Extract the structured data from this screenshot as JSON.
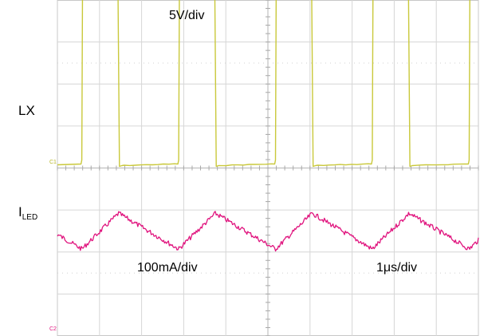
{
  "chart_data": {
    "type": "line",
    "title": "",
    "instrument": "oscilloscope",
    "grid": {
      "divisions_x": 10,
      "divisions_y": 8,
      "minor_ticks_on_center_axes": true,
      "grid_on": true
    },
    "time_scale": "1µs/div",
    "channels": [
      {
        "name": "LX",
        "name_main": "LX",
        "name_sub": "",
        "scale": "5V/div",
        "color": "#c9c83a",
        "marker": "C1",
        "waveform": "square",
        "unit": "V",
        "volts_per_div": 5,
        "low_level_V": 0,
        "high_level_V": 23,
        "period_us": 2.3,
        "duty_cycle": 0.38,
        "first_rising_edge_us": 0.58
      },
      {
        "name": "ILED",
        "name_main": "I",
        "name_sub": "LED",
        "scale": "100mA/div",
        "color": "#e0147e",
        "marker": "C2",
        "waveform": "triangle",
        "unit": "mA",
        "amps_per_div_mA": 100,
        "ripple_pp_mA": 100,
        "period_us": 2.3
      }
    ],
    "annotations": [
      "5V/div",
      "100mA/div",
      "1µs/div"
    ]
  },
  "labels": {
    "lx_scale": "5V/div",
    "iled_scale": "100mA/div",
    "time_scale": "1μs/div",
    "lx_name": "LX",
    "iled_main": "I",
    "iled_sub": "LED",
    "c1_marker": "C1",
    "c2_marker": "C2"
  }
}
